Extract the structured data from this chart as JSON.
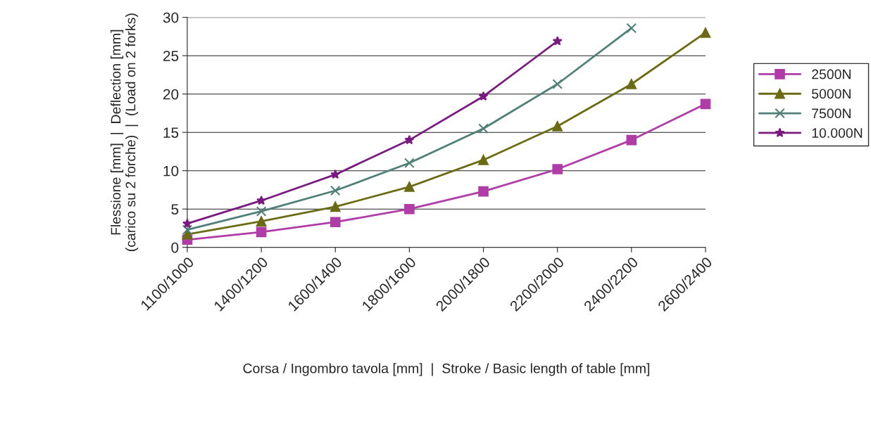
{
  "chart_data": {
    "type": "line",
    "xlabel": "Corsa / Ingombro tavola [mm]  |  Stroke / Basic length of table [mm]",
    "ylabel": "Flessione [mm]  |  Deflection [mm]\n(carico su 2 forche)  |  (Load on 2 forks)",
    "categories": [
      "1100/1000",
      "1400/1200",
      "1600/1400",
      "1800/1600",
      "2000/1800",
      "2200/2000",
      "2400/2200",
      "2600/2400"
    ],
    "series": [
      {
        "name": "2500N",
        "color": "#b03ca8",
        "marker": "square",
        "values": [
          1.0,
          2.0,
          3.3,
          5.0,
          7.3,
          10.2,
          14.0,
          18.7
        ]
      },
      {
        "name": "5000N",
        "color": "#6b6b14",
        "marker": "triangle",
        "values": [
          1.7,
          3.4,
          5.3,
          7.9,
          11.4,
          15.8,
          21.3,
          28.0
        ]
      },
      {
        "name": "7500N",
        "color": "#4f8078",
        "marker": "cross",
        "values": [
          2.3,
          4.7,
          7.4,
          11.0,
          15.5,
          21.3,
          28.6,
          null
        ]
      },
      {
        "name": "10.000N",
        "color": "#7a1a80",
        "marker": "star",
        "values": [
          3.1,
          6.1,
          9.5,
          14.0,
          19.7,
          26.9,
          null,
          null
        ]
      }
    ],
    "ylim": [
      0,
      30
    ],
    "yticks": [
      0,
      5,
      10,
      15,
      20,
      25,
      30
    ],
    "grid": "y",
    "legend": "right",
    "line_style": "solid"
  }
}
